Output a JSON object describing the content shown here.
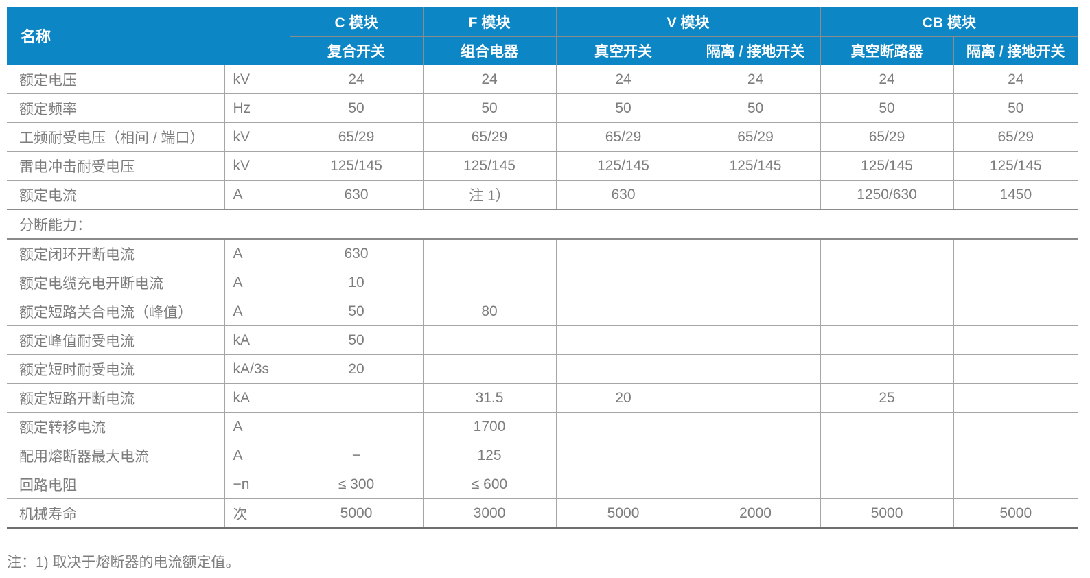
{
  "theme": {
    "header_bg": "#0d86c6",
    "header_text": "#ffffff",
    "body_text": "#7d7d7d",
    "grid_line": "#a5a5a5",
    "section_line": "#8a8a8a",
    "bottom_line": "#6e6e6e"
  },
  "table": {
    "name_header": "名称",
    "groups": [
      {
        "label": "C 模块",
        "span": 1
      },
      {
        "label": "F 模块",
        "span": 1
      },
      {
        "label": "V 模块",
        "span": 2
      },
      {
        "label": "CB 模块",
        "span": 2
      }
    ],
    "subheaders": [
      "复合开关",
      "组合电器",
      "真空开关",
      "隔离 / 接地开关",
      "真空断路器",
      "隔离 / 接地开关"
    ],
    "rows": [
      {
        "type": "data",
        "name": "额定电压",
        "unit": "kV",
        "values": [
          "24",
          "24",
          "24",
          "24",
          "24",
          "24"
        ]
      },
      {
        "type": "data",
        "name": "额定频率",
        "unit": "Hz",
        "values": [
          "50",
          "50",
          "50",
          "50",
          "50",
          "50"
        ]
      },
      {
        "type": "data",
        "name": "工频耐受电压（相间 / 端口）",
        "unit": "kV",
        "values": [
          "65/29",
          "65/29",
          "65/29",
          "65/29",
          "65/29",
          "65/29"
        ]
      },
      {
        "type": "data",
        "name": "雷电冲击耐受电压",
        "unit": "kV",
        "values": [
          "125/145",
          "125/145",
          "125/145",
          "125/145",
          "125/145",
          "125/145"
        ]
      },
      {
        "type": "data",
        "name": "额定电流",
        "unit": "A",
        "values": [
          "630",
          "注 1）",
          "630",
          "",
          "1250/630",
          "1450"
        ]
      },
      {
        "type": "section",
        "name": "分断能力："
      },
      {
        "type": "data",
        "name": "额定闭环开断电流",
        "unit": "A",
        "values": [
          "630",
          "",
          "",
          "",
          "",
          ""
        ]
      },
      {
        "type": "data",
        "name": "额定电缆充电开断电流",
        "unit": "A",
        "values": [
          "10",
          "",
          "",
          "",
          "",
          ""
        ]
      },
      {
        "type": "data",
        "name": "额定短路关合电流（峰值）",
        "unit": "A",
        "values": [
          "50",
          "80",
          "",
          "",
          "",
          ""
        ]
      },
      {
        "type": "data",
        "name": "额定峰值耐受电流",
        "unit": "kA",
        "values": [
          "50",
          "",
          "",
          "",
          "",
          ""
        ]
      },
      {
        "type": "data",
        "name": "额定短时耐受电流",
        "unit": "kA/3s",
        "values": [
          "20",
          "",
          "",
          "",
          "",
          ""
        ]
      },
      {
        "type": "data",
        "name": "额定短路开断电流",
        "unit": "kA",
        "values": [
          "",
          "31.5",
          "20",
          "",
          "25",
          ""
        ]
      },
      {
        "type": "data",
        "name": "额定转移电流",
        "unit": "A",
        "values": [
          "",
          "1700",
          "",
          "",
          "",
          ""
        ]
      },
      {
        "type": "data",
        "name": "配用熔断器最大电流",
        "unit": "A",
        "values": [
          "−",
          "125",
          "",
          "",
          "",
          ""
        ]
      },
      {
        "type": "data",
        "name": "回路电阻",
        "unit": "−n",
        "values": [
          "≤ 300",
          "≤ 600",
          "",
          "",
          "",
          ""
        ]
      },
      {
        "type": "data",
        "name": "机械寿命",
        "unit": "次",
        "values": [
          "5000",
          "3000",
          "5000",
          "2000",
          "5000",
          "5000"
        ]
      }
    ]
  },
  "note": "注：1) 取决于熔断器的电流额定值。"
}
